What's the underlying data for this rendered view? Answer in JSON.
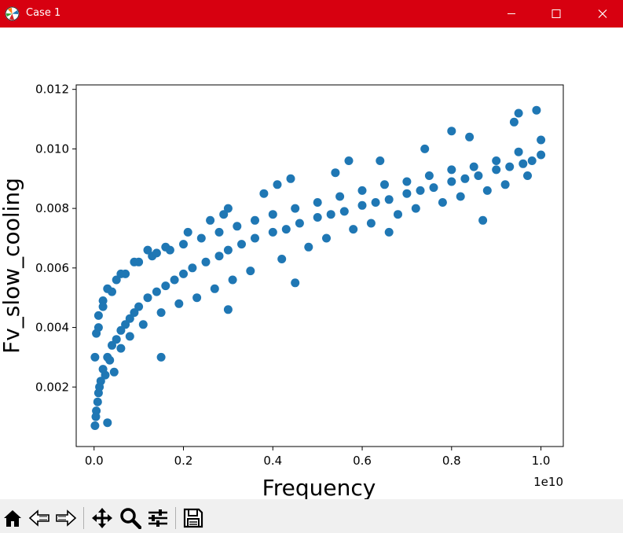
{
  "window": {
    "title": "Case 1",
    "titlebar_color": "#d70010",
    "icons": {
      "app": "matplotlib-app-icon",
      "minimize": "minimize-icon",
      "maximize": "maximize-icon",
      "close": "close-icon"
    }
  },
  "toolbar": {
    "items": [
      {
        "name": "home-icon",
        "tooltip": "Home"
      },
      {
        "name": "back-icon",
        "tooltip": "Back"
      },
      {
        "name": "forward-icon",
        "tooltip": "Forward"
      },
      {
        "name": "pan-icon",
        "tooltip": "Pan"
      },
      {
        "name": "zoom-icon",
        "tooltip": "Zoom"
      },
      {
        "name": "configure-subplots-icon",
        "tooltip": "Configure subplots"
      },
      {
        "name": "save-icon",
        "tooltip": "Save"
      }
    ]
  },
  "chart_data": {
    "type": "scatter",
    "title": "",
    "xlabel": "Frequency",
    "ylabel": "Fv_slow_cooling",
    "x_offset_label": "1e10",
    "xlim": [
      -0.04,
      1.05
    ],
    "ylim": [
      0.0,
      0.01215
    ],
    "x_ticks": [
      0.0,
      0.2,
      0.4,
      0.6,
      0.8,
      1.0
    ],
    "x_tick_labels": [
      "0.0",
      "0.2",
      "0.4",
      "0.6",
      "0.8",
      "1.0"
    ],
    "y_ticks": [
      0.002,
      0.004,
      0.006,
      0.008,
      0.01,
      0.012
    ],
    "y_tick_labels": [
      "0.002",
      "0.004",
      "0.006",
      "0.008",
      "0.010",
      "0.012"
    ],
    "marker_color": "#1f77b4",
    "grid": false,
    "legend": "none",
    "x_units_multiplier": 10000000000,
    "series": [
      {
        "x": [
          0.002,
          0.005,
          0.01,
          0.015,
          0.02,
          0.03,
          0.04,
          0.05,
          0.06,
          0.07,
          0.08,
          0.09,
          0.1,
          0.12,
          0.14,
          0.16,
          0.18,
          0.2,
          0.22,
          0.25,
          0.28,
          0.3,
          0.33,
          0.36,
          0.4,
          0.43,
          0.46,
          0.5,
          0.53,
          0.56,
          0.6,
          0.63,
          0.66,
          0.7,
          0.73,
          0.76,
          0.8,
          0.83,
          0.86,
          0.9,
          0.93,
          0.96,
          0.98,
          1.0,
          0.002,
          0.005,
          0.01,
          0.02,
          0.03,
          0.05,
          0.07,
          0.1,
          0.13,
          0.17,
          0.2,
          0.24,
          0.28,
          0.32,
          0.36,
          0.4,
          0.45,
          0.5,
          0.55,
          0.6,
          0.65,
          0.7,
          0.75,
          0.8,
          0.85,
          0.9,
          0.95,
          1.0,
          0.004,
          0.008,
          0.012,
          0.025,
          0.035,
          0.06,
          0.08,
          0.11,
          0.15,
          0.19,
          0.23,
          0.27,
          0.31,
          0.35,
          0.42,
          0.48,
          0.52,
          0.58,
          0.62,
          0.68,
          0.72,
          0.78,
          0.82,
          0.88,
          0.92,
          0.97,
          0.01,
          0.02,
          0.04,
          0.06,
          0.09,
          0.12,
          0.16,
          0.21,
          0.26,
          0.3,
          0.38,
          0.44,
          0.54,
          0.64,
          0.74,
          0.84,
          0.94,
          0.99,
          0.15,
          0.3,
          0.45,
          0.66,
          0.87,
          0.03,
          0.045,
          0.14,
          0.29,
          0.41,
          0.57,
          0.8,
          0.95
        ],
        "y": [
          0.0007,
          0.0012,
          0.0018,
          0.0022,
          0.0026,
          0.003,
          0.0034,
          0.0036,
          0.0039,
          0.0041,
          0.0043,
          0.0045,
          0.0047,
          0.005,
          0.0052,
          0.0054,
          0.0056,
          0.0058,
          0.006,
          0.0062,
          0.0064,
          0.0066,
          0.0068,
          0.007,
          0.0072,
          0.0073,
          0.0075,
          0.0077,
          0.0078,
          0.0079,
          0.0081,
          0.0082,
          0.0083,
          0.0085,
          0.0086,
          0.0087,
          0.0089,
          0.009,
          0.0091,
          0.0093,
          0.0094,
          0.0095,
          0.0096,
          0.0098,
          0.003,
          0.0038,
          0.0044,
          0.0049,
          0.0053,
          0.0056,
          0.0058,
          0.0062,
          0.0064,
          0.0066,
          0.0068,
          0.007,
          0.0072,
          0.0074,
          0.0076,
          0.0078,
          0.008,
          0.0082,
          0.0084,
          0.0086,
          0.0088,
          0.0089,
          0.0091,
          0.0093,
          0.0094,
          0.0096,
          0.0099,
          0.0103,
          0.001,
          0.0015,
          0.002,
          0.0024,
          0.0029,
          0.0033,
          0.0037,
          0.0041,
          0.0045,
          0.0048,
          0.005,
          0.0053,
          0.0056,
          0.0059,
          0.0063,
          0.0067,
          0.007,
          0.0073,
          0.0075,
          0.0078,
          0.008,
          0.0082,
          0.0084,
          0.0086,
          0.0088,
          0.0091,
          0.004,
          0.0047,
          0.0052,
          0.0058,
          0.0062,
          0.0066,
          0.0067,
          0.0072,
          0.0076,
          0.008,
          0.0085,
          0.009,
          0.0092,
          0.0096,
          0.01,
          0.0104,
          0.0109,
          0.0113,
          0.003,
          0.0046,
          0.0055,
          0.0072,
          0.0076,
          0.0008,
          0.0025,
          0.0065,
          0.0078,
          0.0088,
          0.0096,
          0.0106,
          0.0112
        ]
      }
    ]
  }
}
